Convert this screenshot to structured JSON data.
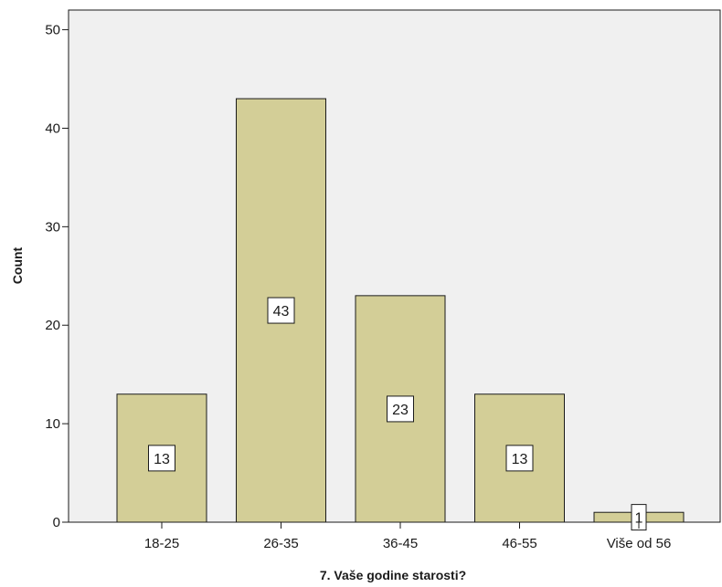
{
  "chart_data": {
    "type": "bar",
    "title": "",
    "xlabel": "7. Vaše godine starosti?",
    "ylabel": "Count",
    "categories": [
      "18-25",
      "26-35",
      "36-45",
      "46-55",
      "Više od 56"
    ],
    "values": [
      13,
      43,
      23,
      13,
      1
    ],
    "data_labels": [
      "13",
      "43",
      "23",
      "13",
      "1"
    ],
    "ylim": [
      0,
      52
    ],
    "yticks": [
      0,
      10,
      20,
      30,
      40,
      50
    ],
    "ytick_labels": [
      "0",
      "10",
      "20",
      "30",
      "40",
      "50"
    ],
    "grid": false,
    "legend": "none",
    "colors": {
      "plot_background": "#f0f0f0",
      "bar_fill": "#d3ce97",
      "bar_stroke": "#1a1a1a",
      "label_box": "#ffffff"
    }
  }
}
